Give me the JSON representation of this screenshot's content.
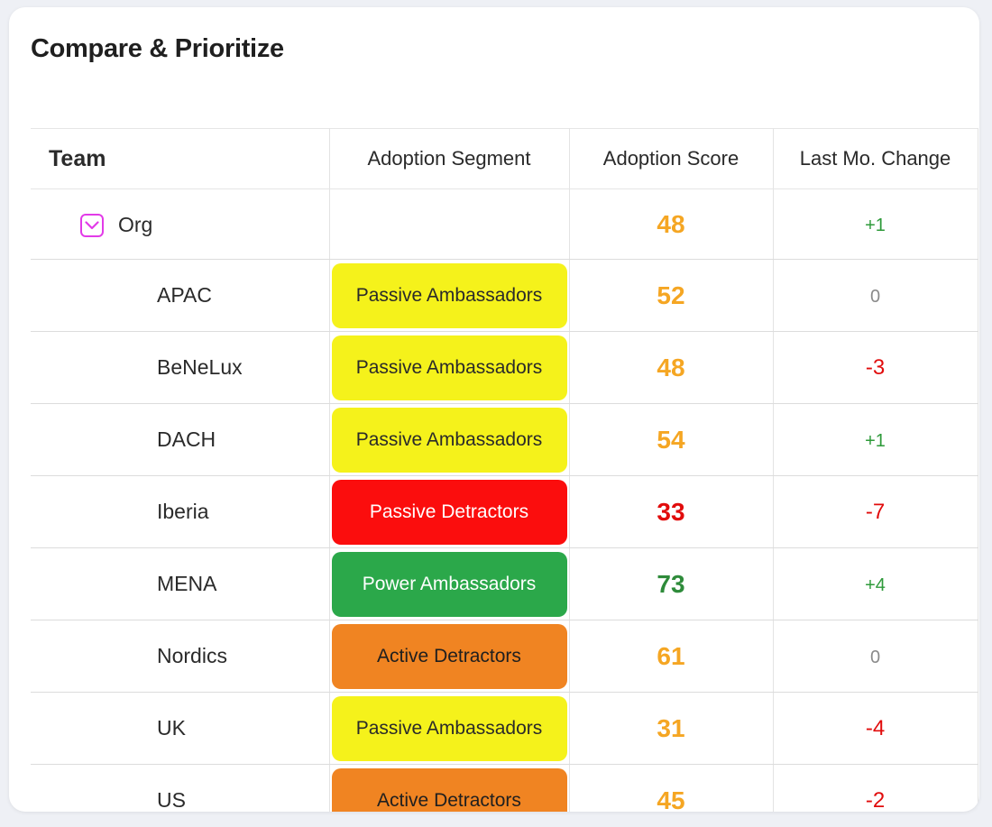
{
  "card": {
    "title": "Compare & Prioritize"
  },
  "table": {
    "headers": {
      "team": "Team",
      "segment": "Adoption Segment",
      "score": "Adoption Score",
      "change": "Last Mo. Change"
    },
    "org": {
      "team": "Org",
      "score": "48",
      "score_color": "#f5a623",
      "change": "+1",
      "change_color": "#2e9a3a"
    },
    "rows": [
      {
        "team": "APAC",
        "segment": "Passive Ambassadors",
        "seg_bg": "#f5f21b",
        "seg_fg": "#2a2a2a",
        "score": "52",
        "score_color": "#f5a623",
        "change": "0",
        "change_color": "#8a8a8a"
      },
      {
        "team": "BeNeLux",
        "segment": "Passive Ambassadors",
        "seg_bg": "#f5f21b",
        "seg_fg": "#2a2a2a",
        "score": "48",
        "score_color": "#f5a623",
        "change": "-3",
        "change_color": "#e10c0c"
      },
      {
        "team": "DACH",
        "segment": "Passive Ambassadors",
        "seg_bg": "#f5f21b",
        "seg_fg": "#2a2a2a",
        "score": "54",
        "score_color": "#f5a623",
        "change": "+1",
        "change_color": "#2e9a3a"
      },
      {
        "team": "Iberia",
        "segment": "Passive Detractors",
        "seg_bg": "#fb0d0d",
        "seg_fg": "#ffffff",
        "score": "33",
        "score_color": "#e10c0c",
        "change": "-7",
        "change_color": "#e10c0c"
      },
      {
        "team": "MENA",
        "segment": "Power Ambassadors",
        "seg_bg": "#2ba84a",
        "seg_fg": "#ffffff",
        "score": "73",
        "score_color": "#2e8b3a",
        "change": "+4",
        "change_color": "#2e9a3a"
      },
      {
        "team": "Nordics",
        "segment": "Active Detractors",
        "seg_bg": "#f08422",
        "seg_fg": "#1f1f1f",
        "score": "61",
        "score_color": "#f5a623",
        "change": "0",
        "change_color": "#8a8a8a"
      },
      {
        "team": "UK",
        "segment": "Passive Ambassadors",
        "seg_bg": "#f5f21b",
        "seg_fg": "#2a2a2a",
        "score": "31",
        "score_color": "#f5a623",
        "change": "-4",
        "change_color": "#e10c0c"
      },
      {
        "team": "US",
        "segment": "Active Detractors",
        "seg_bg": "#f08422",
        "seg_fg": "#1f1f1f",
        "score": "45",
        "score_color": "#f5a623",
        "change": "-2",
        "change_color": "#e10c0c"
      }
    ]
  }
}
